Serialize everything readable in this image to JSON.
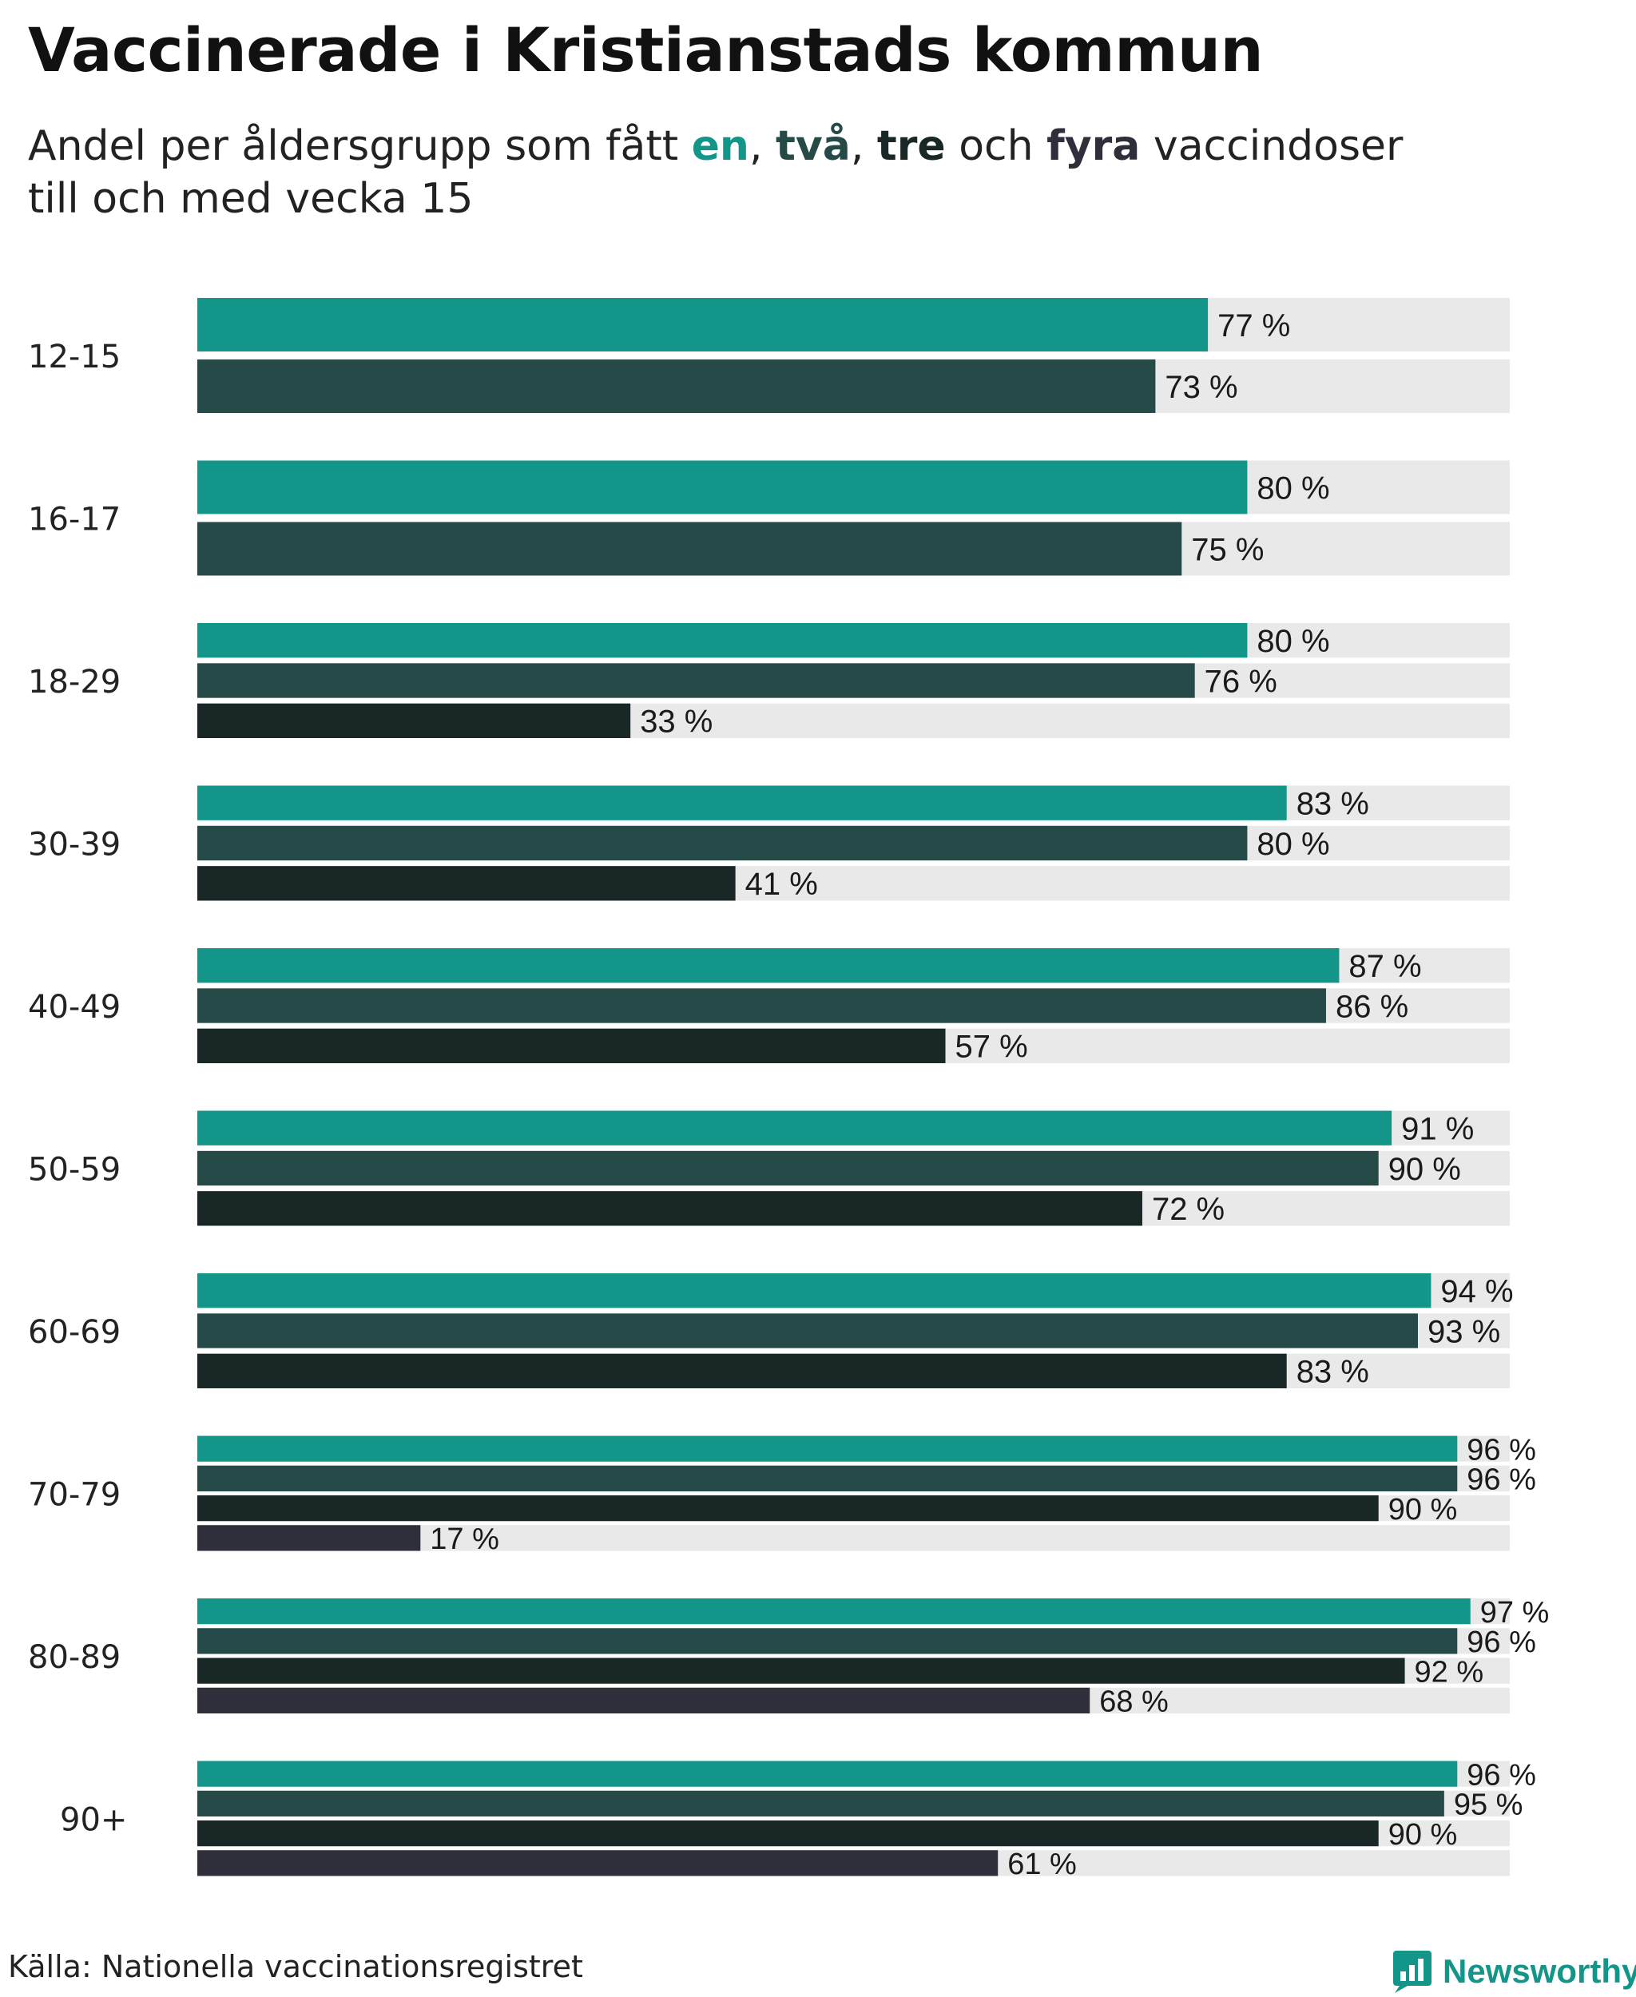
{
  "title": "Vaccinerade i Kristianstads kommun",
  "subtitle": {
    "prefix": "Andel per åldersgrupp som fått ",
    "k1": "en",
    "sep1": ", ",
    "k2": "två",
    "sep2": ", ",
    "k3": "tre",
    "mid": " och ",
    "k4": "fyra",
    "suffix": " vaccindoser",
    "line2": "till och med vecka 15"
  },
  "colors": {
    "en": "#13958a",
    "tva": "#264a48",
    "tre": "#192826",
    "fyra": "#2f2e3b",
    "track": "#e9e9e9"
  },
  "chart_data": {
    "type": "bar",
    "orientation": "horizontal",
    "categories": [
      "12-15",
      "16-17",
      "18-29",
      "30-39",
      "40-49",
      "50-59",
      "60-69",
      "70-79",
      "80-89",
      "90+"
    ],
    "xlim": [
      0,
      100
    ],
    "value_suffix": " %",
    "series": [
      {
        "name": "en",
        "color": "#13958a",
        "values": [
          77,
          80,
          80,
          83,
          87,
          91,
          94,
          96,
          97,
          96
        ]
      },
      {
        "name": "två",
        "color": "#264a48",
        "values": [
          73,
          75,
          76,
          80,
          86,
          90,
          93,
          96,
          96,
          95
        ]
      },
      {
        "name": "tre",
        "color": "#192826",
        "values": [
          null,
          null,
          33,
          41,
          57,
          72,
          83,
          90,
          92,
          90
        ]
      },
      {
        "name": "fyra",
        "color": "#2f2e3b",
        "values": [
          null,
          null,
          null,
          null,
          null,
          null,
          null,
          17,
          68,
          61
        ]
      }
    ]
  },
  "source": "Källa: Nationella vaccinationsregistret",
  "brand": {
    "name": "Newsworthy",
    "icon": "newsworthy-logo-icon",
    "color": "#13958a"
  }
}
